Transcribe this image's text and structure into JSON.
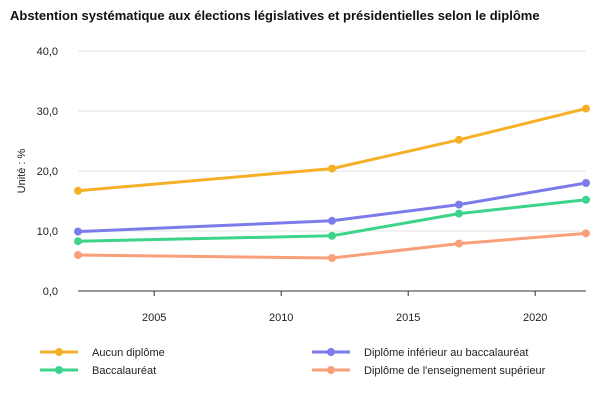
{
  "chart_data": {
    "type": "line",
    "title": "Abstention systématique aux élections législatives et présidentielles selon le diplôme",
    "ylabel": "Unité : %",
    "xlabel": "",
    "xlim": [
      2002,
      2022
    ],
    "ylim": [
      0,
      40
    ],
    "x_ticks": [
      2005,
      2010,
      2015,
      2020
    ],
    "y_ticks": [
      {
        "value": 0,
        "label": "0,0"
      },
      {
        "value": 10,
        "label": "10,0"
      },
      {
        "value": 20,
        "label": "20,0"
      },
      {
        "value": 30,
        "label": "30,0"
      },
      {
        "value": 40,
        "label": "40,0"
      }
    ],
    "grid": "horizontal",
    "legend_position": "bottom",
    "x": [
      2002,
      2012,
      2017,
      2022
    ],
    "series": [
      {
        "name": "Aucun diplôme",
        "color": "#f5b027",
        "values": [
          16.7,
          20.4,
          25.2,
          30.4
        ]
      },
      {
        "name": "Diplôme inférieur au baccalauréat",
        "color": "#7b7bec",
        "values": [
          9.9,
          11.7,
          14.4,
          18.0
        ]
      },
      {
        "name": "Baccalauréat",
        "color": "#3dd38a",
        "values": [
          8.3,
          9.2,
          12.9,
          15.2
        ]
      },
      {
        "name": "Diplôme de l'enseignement supérieur",
        "color": "#f99f7a",
        "values": [
          6.0,
          5.5,
          7.9,
          9.6
        ]
      }
    ]
  }
}
